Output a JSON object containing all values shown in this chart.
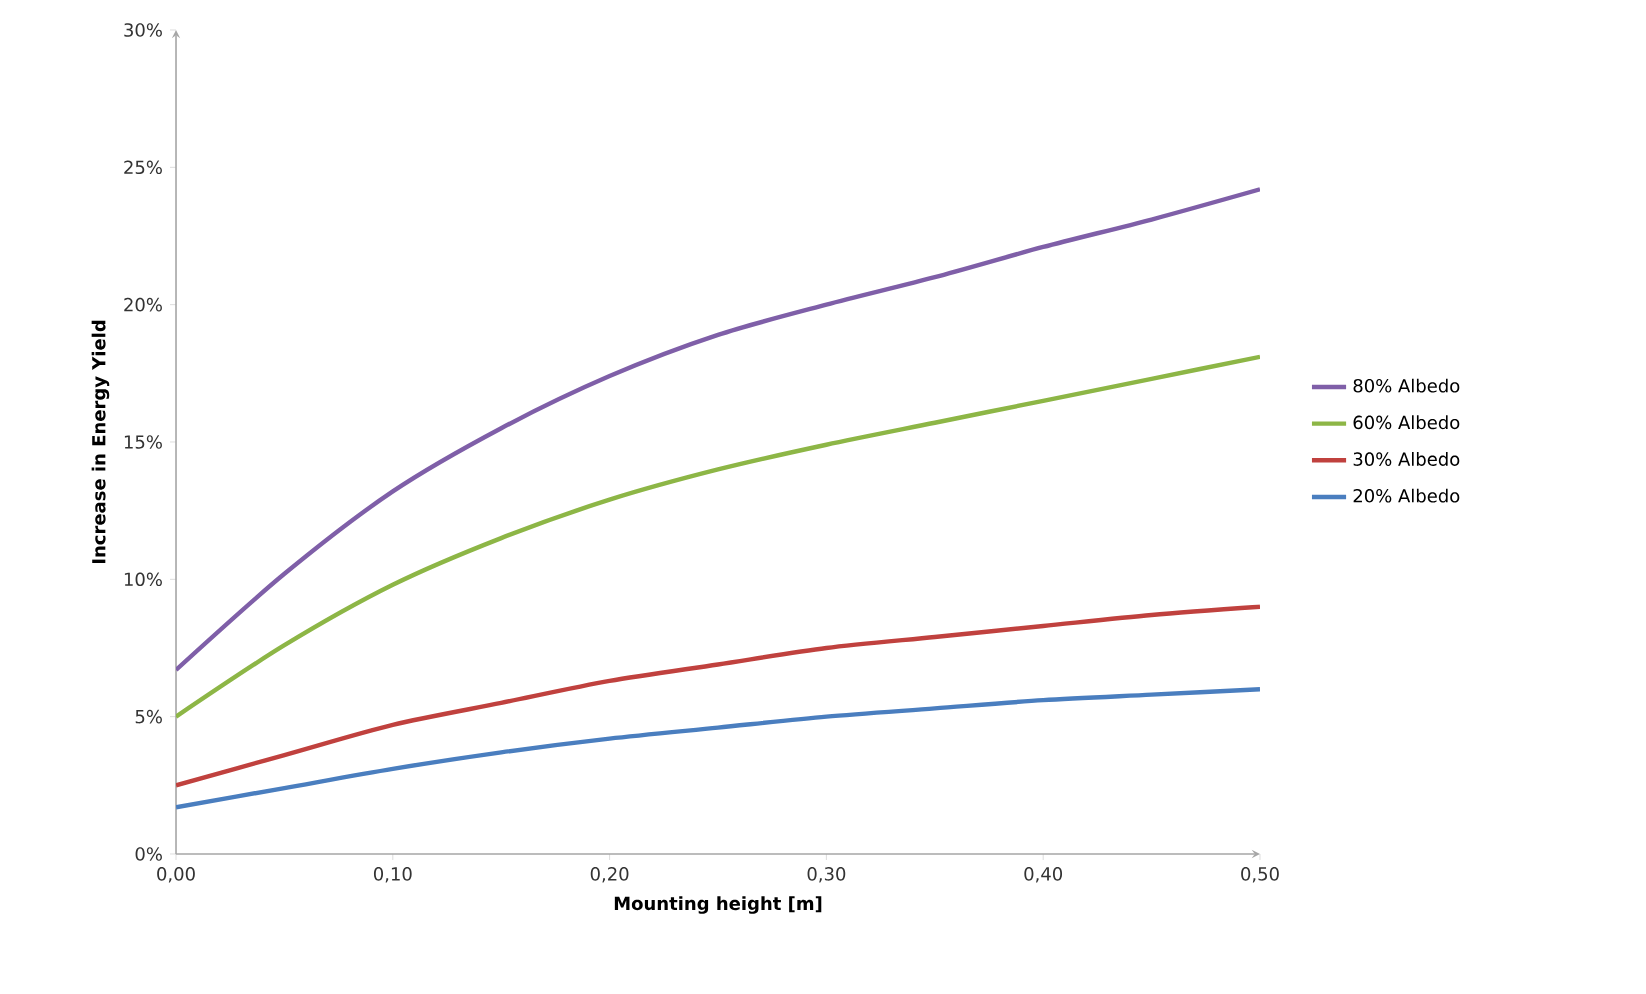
{
  "chart_data": {
    "type": "line",
    "xlabel": "Mounting height [m]",
    "ylabel": "Increase in Energy Yield",
    "x": [
      0,
      0.05,
      0.1,
      0.15,
      0.2,
      0.25,
      0.3,
      0.35,
      0.4,
      0.45,
      0.5
    ],
    "series": [
      {
        "name": "80% Albedo",
        "color": "#7f5fa8",
        "values": [
          6.7,
          10.2,
          13.2,
          15.5,
          17.4,
          18.9,
          20.0,
          21.0,
          22.1,
          23.1,
          24.2
        ]
      },
      {
        "name": "60% Albedo",
        "color": "#8db646",
        "values": [
          5.0,
          7.6,
          9.8,
          11.5,
          12.9,
          14.0,
          14.9,
          15.7,
          16.5,
          17.3,
          18.1
        ]
      },
      {
        "name": "30% Albedo",
        "color": "#c0413e",
        "values": [
          2.5,
          3.6,
          4.7,
          5.5,
          6.3,
          6.9,
          7.5,
          7.9,
          8.3,
          8.7,
          9.0
        ]
      },
      {
        "name": "20% Albedo",
        "color": "#4a7ebf",
        "values": [
          1.7,
          2.4,
          3.1,
          3.7,
          4.2,
          4.6,
          5.0,
          5.3,
          5.6,
          5.8,
          6.0
        ]
      }
    ],
    "xlim": [
      0,
      0.5
    ],
    "ylim": [
      0,
      30
    ],
    "xticks": [
      {
        "value": 0,
        "label": "0,00"
      },
      {
        "value": 0.1,
        "label": "0,10"
      },
      {
        "value": 0.2,
        "label": "0,20"
      },
      {
        "value": 0.3,
        "label": "0,30"
      },
      {
        "value": 0.4,
        "label": "0,40"
      },
      {
        "value": 0.5,
        "label": "0,50"
      }
    ],
    "yticks": [
      {
        "value": 0,
        "label": "0%"
      },
      {
        "value": 5,
        "label": "5%"
      },
      {
        "value": 10,
        "label": "10%"
      },
      {
        "value": 15,
        "label": "15%"
      },
      {
        "value": 20,
        "label": "20%"
      },
      {
        "value": 25,
        "label": "25%"
      },
      {
        "value": 30,
        "label": "30%"
      }
    ],
    "grid": false,
    "legend": "right",
    "marker": "none",
    "line_style": "solid"
  }
}
